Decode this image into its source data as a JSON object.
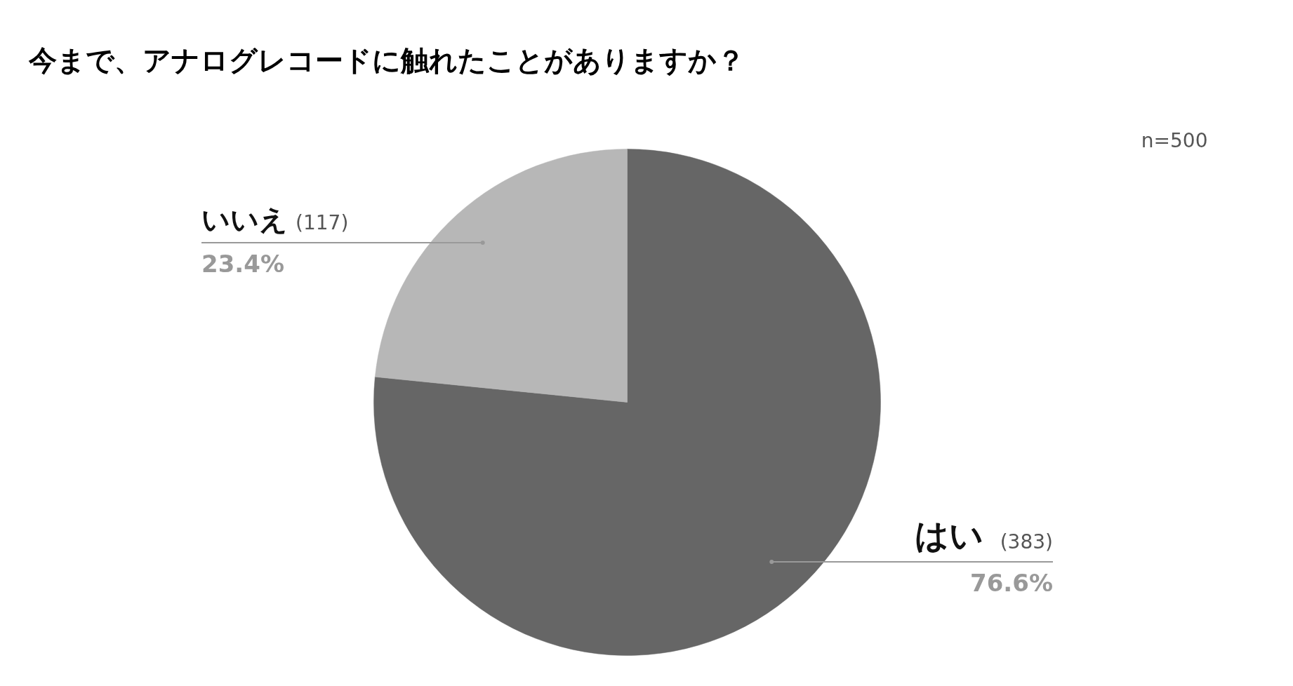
{
  "chart_data": {
    "type": "pie",
    "title": "今まで、アナログレコードに触れたことがありますか？",
    "categories": [
      "はい",
      "いいえ"
    ],
    "values": [
      383,
      117
    ],
    "colors": [
      "#666666",
      "#b7b7b7"
    ],
    "value_labels": [
      "(383)",
      "(117)"
    ],
    "annotations": [
      "n=500",
      "76.6%",
      "23.4%"
    ]
  }
}
